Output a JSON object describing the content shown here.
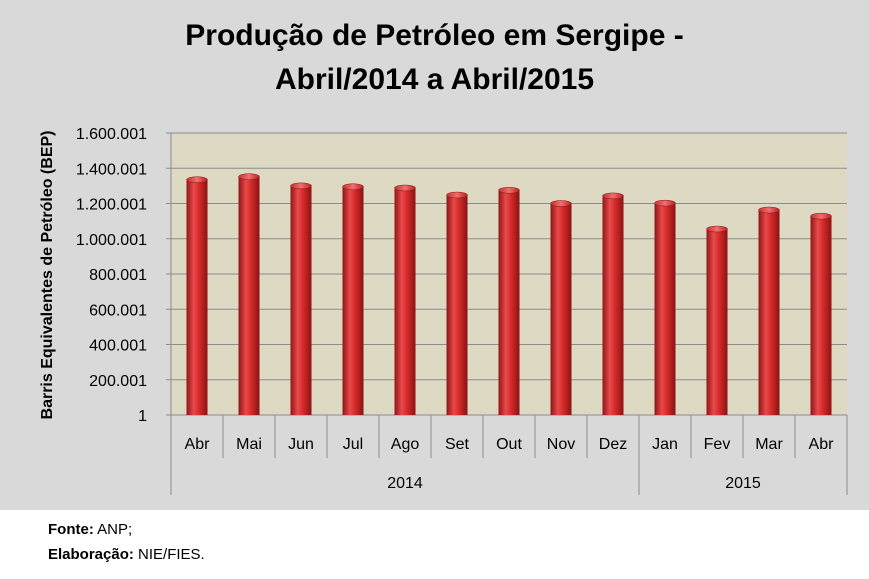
{
  "chart_data": {
    "type": "bar",
    "title_line1": "Produção de Petróleo em Sergipe -",
    "title_line2": "Abril/2014 a Abril/2015",
    "ylabel": "Barris Equivalentes de Petróleo (BEP)",
    "xlabel": "",
    "ylim": [
      1,
      1600001
    ],
    "yticks": [
      "1",
      "200.001",
      "400.001",
      "600.001",
      "800.001",
      "1.000.001",
      "1.200.001",
      "1.400.001",
      "1.600.001"
    ],
    "ytick_values": [
      1,
      200001,
      400001,
      600001,
      800001,
      1000001,
      1200001,
      1400001,
      1600001
    ],
    "categories": [
      "Abr",
      "Mai",
      "Jun",
      "Jul",
      "Ago",
      "Set",
      "Out",
      "Nov",
      "Dez",
      "Jan",
      "Fev",
      "Mar",
      "Abr"
    ],
    "years": [
      {
        "label": "2014",
        "count": 9
      },
      {
        "label": "2015",
        "count": 4
      }
    ],
    "series": [
      {
        "values": [
          1335000,
          1352000,
          1300000,
          1295000,
          1288000,
          1248000,
          1275000,
          1200000,
          1243000,
          1202000,
          1055000,
          1163000,
          1128000
        ]
      }
    ],
    "grid": true,
    "bar_color": "#d42a2a",
    "plot_bg": "#ddd9c3",
    "chart_bg": "#d9d9d9"
  },
  "footer": {
    "source_label": "Fonte:",
    "source_value": "ANP;",
    "credit_label": "Elaboração:",
    "credit_value": "NIE/FIES."
  }
}
